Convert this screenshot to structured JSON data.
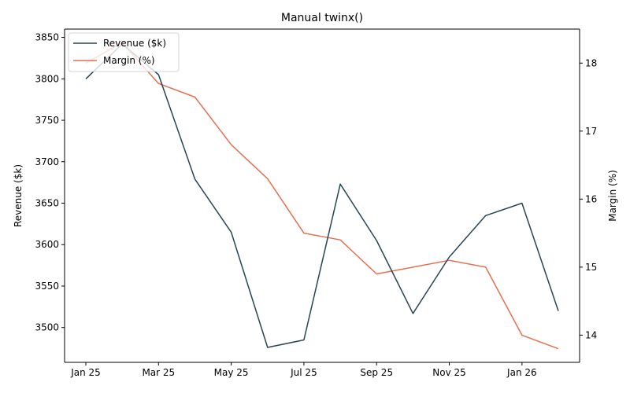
{
  "chart_data": {
    "type": "line",
    "title": "Manual twinx()",
    "categories": [
      "Jan 25",
      "Feb 25",
      "Mar 25",
      "Apr 25",
      "May 25",
      "Jun 25",
      "Jul 25",
      "Aug 25",
      "Sep 25",
      "Oct 25",
      "Nov 25",
      "Dec 25",
      "Jan 26",
      "Feb 26"
    ],
    "x_tick_labels": [
      "Jan 25",
      "Mar 25",
      "May 25",
      "Jul 25",
      "Sep 25",
      "Nov 25",
      "Jan 26"
    ],
    "series": [
      {
        "name": "Revenue ($k)",
        "axis": "left",
        "color": "#264653",
        "values": [
          3800,
          3842,
          3805,
          3679,
          3615,
          3476,
          3485,
          3673,
          3605,
          3517,
          3585,
          3635,
          3650,
          3520
        ]
      },
      {
        "name": "Margin (%)",
        "axis": "right",
        "color": "#e76f51",
        "values": [
          18.0,
          18.3,
          17.7,
          17.5,
          16.8,
          16.3,
          15.5,
          15.4,
          14.9,
          15.0,
          15.1,
          15.0,
          14.0,
          13.8
        ]
      }
    ],
    "y_left": {
      "label": "Revenue ($k)",
      "ylim": [
        3458,
        3860
      ],
      "ticks": [
        3500,
        3550,
        3600,
        3650,
        3700,
        3750,
        3800,
        3850
      ]
    },
    "y_right": {
      "label": "Margin (%)",
      "ylim": [
        13.6,
        18.5
      ],
      "ticks": [
        14,
        15,
        16,
        17,
        18
      ]
    },
    "grid": false,
    "legend_position": "top-left"
  }
}
